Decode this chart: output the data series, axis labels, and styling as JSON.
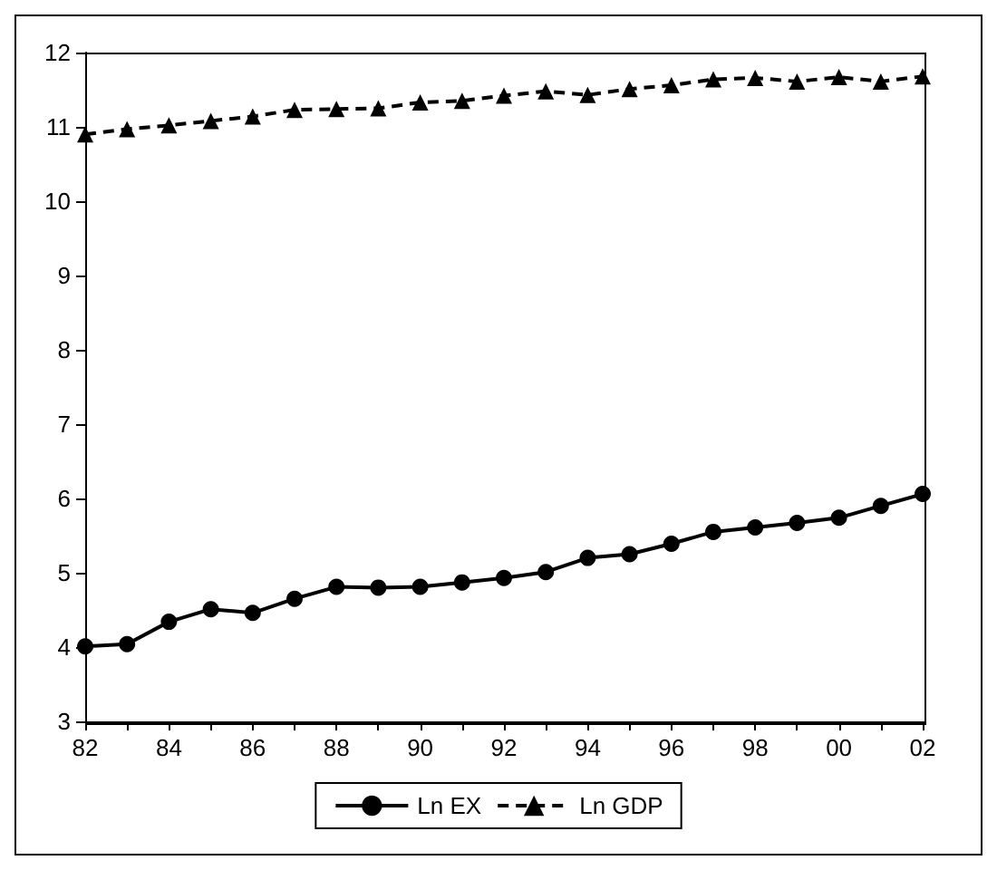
{
  "chart_data": {
    "type": "line",
    "categories": [
      "82",
      null,
      "84",
      null,
      "86",
      null,
      "88",
      null,
      "90",
      null,
      "92",
      null,
      "94",
      null,
      "96",
      null,
      "98",
      null,
      "00",
      null,
      "02"
    ],
    "series": [
      {
        "name": "Ln EX",
        "color": "#000000",
        "marker": "circle",
        "line_style": "solid",
        "values": [
          4.01,
          4.04,
          4.34,
          4.51,
          4.46,
          4.65,
          4.81,
          4.8,
          4.81,
          4.87,
          4.93,
          5.01,
          5.2,
          5.25,
          5.39,
          5.55,
          5.61,
          5.67,
          5.74,
          5.9,
          6.06
        ]
      },
      {
        "name": "Ln GDP",
        "color": "#000000",
        "marker": "triangle",
        "line_style": "dashed",
        "values": [
          10.9,
          10.97,
          11.02,
          11.08,
          11.14,
          11.23,
          11.24,
          11.25,
          11.33,
          11.35,
          11.42,
          11.48,
          11.43,
          11.51,
          11.56,
          11.64,
          11.66,
          11.61,
          11.67,
          11.61,
          11.68
        ]
      }
    ],
    "ylim": [
      3,
      12
    ],
    "yticks": [
      3,
      4,
      5,
      6,
      7,
      8,
      9,
      10,
      11,
      12
    ],
    "grid": false,
    "legend": "bottom"
  }
}
